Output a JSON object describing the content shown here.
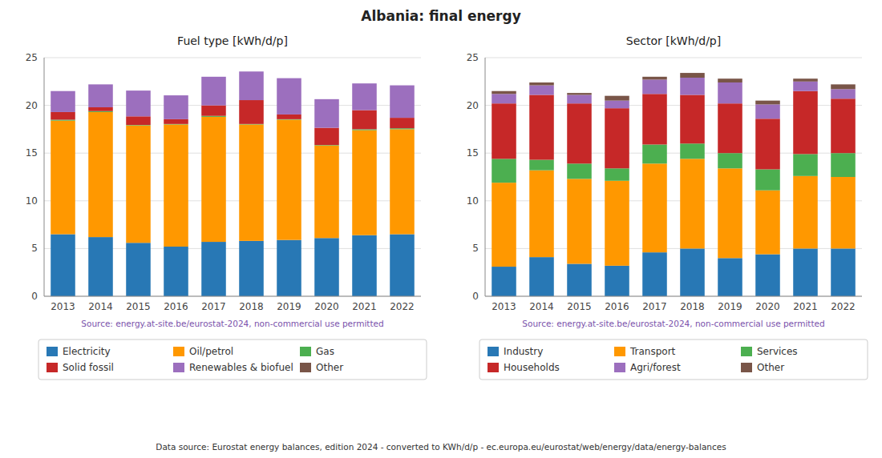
{
  "title": "Albania: final energy",
  "annotations": [
    "Data source: Eurostat energy balances, edition 2024 - converted to KWh/d/p - ec.europa.eu/eurostat/web/energy/data/energy-balances"
  ],
  "chart_data": [
    {
      "type": "bar",
      "stacked": true,
      "grid": true,
      "legend": "bottom",
      "title": "Fuel type [kWh/d/p]",
      "annotations": [
        "Source: energy.at-site.be/eurostat-2024, non-commercial use permitted"
      ],
      "categories": [
        "2013",
        "2014",
        "2015",
        "2016",
        "2017",
        "2018",
        "2019",
        "2020",
        "2021",
        "2022"
      ],
      "ylim": [
        0,
        25
      ],
      "yticks": [
        0,
        5,
        10,
        15,
        20,
        25
      ],
      "series": [
        {
          "name": "Electricity",
          "color": "#2878b5",
          "values": [
            6.5,
            6.2,
            5.6,
            5.2,
            5.7,
            5.8,
            5.9,
            6.1,
            6.4,
            6.5
          ]
        },
        {
          "name": "Oil/petrol",
          "color": "#ff9800",
          "values": [
            11.9,
            13.1,
            12.3,
            12.8,
            13.1,
            12.2,
            12.6,
            9.7,
            11.0,
            11.0
          ]
        },
        {
          "name": "Gas",
          "color": "#4caf50",
          "values": [
            0.1,
            0.1,
            0.05,
            0.05,
            0.1,
            0.05,
            0.05,
            0.05,
            0.1,
            0.1
          ]
        },
        {
          "name": "Solid fossil",
          "color": "#c62828",
          "values": [
            0.8,
            0.4,
            0.9,
            0.5,
            1.1,
            2.5,
            0.5,
            1.8,
            2.0,
            1.1
          ]
        },
        {
          "name": "Renewables & biofuel",
          "color": "#9c6fbe",
          "values": [
            2.2,
            2.4,
            2.7,
            2.5,
            3.0,
            3.0,
            3.8,
            3.0,
            2.8,
            3.4
          ]
        },
        {
          "name": "Other",
          "color": "#795548",
          "values": [
            0.0,
            0.0,
            0.0,
            0.0,
            0.0,
            0.0,
            0.0,
            0.0,
            0.0,
            0.0
          ]
        }
      ]
    },
    {
      "type": "bar",
      "stacked": true,
      "grid": true,
      "legend": "bottom",
      "title": "Sector [kWh/d/p]",
      "annotations": [
        "Source: energy.at-site.be/eurostat-2024, non-commercial use permitted"
      ],
      "categories": [
        "2013",
        "2014",
        "2015",
        "2016",
        "2017",
        "2018",
        "2019",
        "2020",
        "2021",
        "2022"
      ],
      "ylim": [
        0,
        25
      ],
      "yticks": [
        0,
        5,
        10,
        15,
        20,
        25
      ],
      "series": [
        {
          "name": "Industry",
          "color": "#2878b5",
          "values": [
            3.1,
            4.1,
            3.4,
            3.2,
            4.6,
            5.0,
            4.0,
            4.4,
            5.0,
            5.0
          ]
        },
        {
          "name": "Transport",
          "color": "#ff9800",
          "values": [
            8.8,
            9.1,
            8.9,
            8.9,
            9.3,
            9.4,
            9.4,
            6.7,
            7.6,
            7.5
          ]
        },
        {
          "name": "Services",
          "color": "#4caf50",
          "values": [
            2.5,
            1.1,
            1.6,
            1.3,
            2.0,
            1.6,
            1.6,
            2.2,
            2.3,
            2.5
          ]
        },
        {
          "name": "Households",
          "color": "#c62828",
          "values": [
            5.8,
            6.8,
            6.3,
            6.3,
            5.3,
            5.1,
            5.2,
            5.3,
            6.6,
            5.7
          ]
        },
        {
          "name": "Agri/forest",
          "color": "#9c6fbe",
          "values": [
            1.0,
            1.0,
            0.9,
            0.8,
            1.5,
            1.8,
            2.2,
            1.5,
            1.0,
            1.0
          ]
        },
        {
          "name": "Other",
          "color": "#795548",
          "values": [
            0.3,
            0.3,
            0.2,
            0.5,
            0.3,
            0.5,
            0.4,
            0.4,
            0.3,
            0.5
          ]
        }
      ]
    }
  ]
}
